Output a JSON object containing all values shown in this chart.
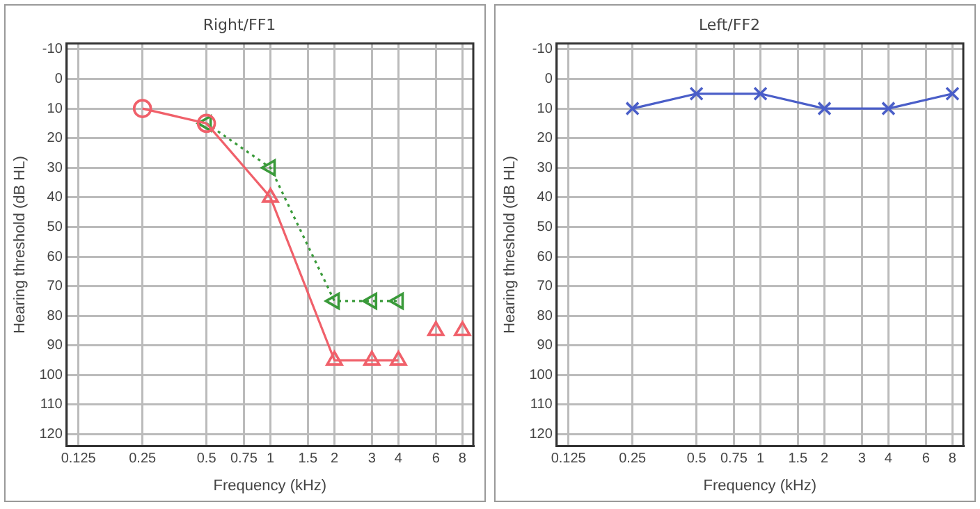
{
  "chart_data": [
    {
      "type": "line",
      "title": "Right/FF1",
      "xlabel": "Frequency (kHz)",
      "ylabel": "Hearing threshold (dB HL)",
      "log": "x",
      "grid": true,
      "legend": false,
      "xlim": [
        0.11,
        9
      ],
      "xticks": [
        0.125,
        0.25,
        0.5,
        0.75,
        1,
        1.5,
        2,
        3,
        4,
        6,
        8
      ],
      "ylim": [
        124,
        -12
      ],
      "yticks": [
        -10,
        0,
        10,
        20,
        30,
        40,
        50,
        60,
        70,
        80,
        90,
        100,
        110,
        120
      ],
      "series": [
        {
          "type": "line",
          "color": "#f0606a",
          "marker": "circle",
          "line_style": "solid",
          "x": [
            0.25,
            0.5
          ],
          "values": [
            10,
            15
          ]
        },
        {
          "type": "line",
          "color": "#f0606a",
          "line_style": "solid",
          "x": [
            0.5,
            1
          ],
          "values": [
            15,
            40
          ]
        },
        {
          "type": "line",
          "color": "#f0606a",
          "marker": "triangle",
          "line_style": "solid",
          "x": [
            1,
            2,
            3,
            4
          ],
          "values": [
            40,
            95,
            95,
            95
          ]
        },
        {
          "type": "scatter",
          "color": "#f0606a",
          "marker": "triangle",
          "x": [
            6,
            8
          ],
          "values": [
            85,
            85
          ]
        },
        {
          "type": "line",
          "color": "#3a9a3a",
          "marker": "triangle",
          "line_style": "dotted",
          "x": [
            0.5,
            1,
            2,
            3,
            4
          ],
          "values": [
            15,
            30,
            75,
            75,
            75
          ]
        }
      ]
    },
    {
      "type": "line",
      "title": "Left/FF2",
      "xlabel": "Frequency (kHz)",
      "ylabel": "Hearing threshold (dB HL)",
      "log": "x",
      "grid": true,
      "legend": false,
      "xlim": [
        0.11,
        9
      ],
      "xticks": [
        0.125,
        0.25,
        0.5,
        0.75,
        1,
        1.5,
        2,
        3,
        4,
        6,
        8
      ],
      "ylim": [
        124,
        -12
      ],
      "yticks": [
        -10,
        0,
        10,
        20,
        30,
        40,
        50,
        60,
        70,
        80,
        90,
        100,
        110,
        120
      ],
      "series": [
        {
          "type": "line",
          "color": "#4a5ec8",
          "marker": "cross",
          "line_style": "solid",
          "x": [
            0.25,
            0.5,
            1,
            2,
            4,
            8
          ],
          "values": [
            10,
            5,
            5,
            10,
            10,
            5
          ]
        }
      ]
    }
  ]
}
